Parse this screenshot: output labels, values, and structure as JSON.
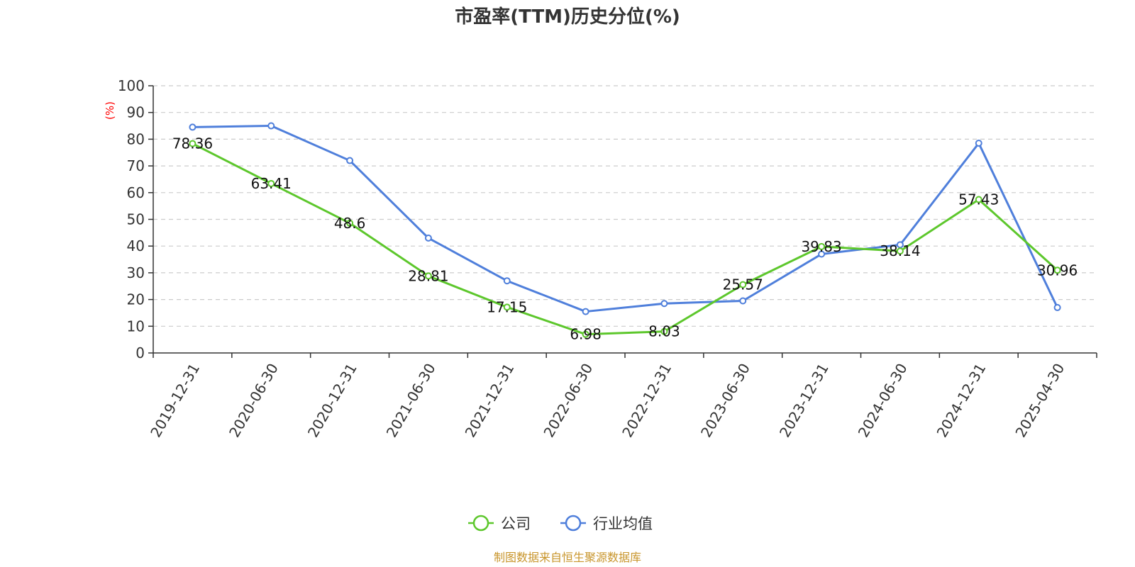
{
  "chart_data": {
    "type": "line",
    "title": "市盈率(TTM)历史分位(%)",
    "ylabel": "(%)",
    "xlabel": "",
    "ylim": [
      0,
      100
    ],
    "yticks": [
      0,
      10,
      20,
      30,
      40,
      50,
      60,
      70,
      80,
      90,
      100
    ],
    "categories": [
      "2019-12-31",
      "2020-06-30",
      "2020-12-31",
      "2021-06-30",
      "2021-12-31",
      "2022-06-30",
      "2022-12-31",
      "2023-06-30",
      "2023-12-31",
      "2024-06-30",
      "2024-12-31",
      "2025-04-30"
    ],
    "grid": true,
    "legend_position": "bottom-center",
    "series": [
      {
        "name": "公司",
        "color": "#5dc72c",
        "values": [
          78.36,
          63.41,
          48.6,
          28.81,
          17.15,
          6.98,
          8.03,
          25.57,
          39.83,
          38.14,
          57.43,
          30.96
        ],
        "labels": [
          "78.36",
          "63.41",
          "48.6",
          "28.81",
          "17.15",
          "6.98",
          "8.03",
          "25.57",
          "39.83",
          "38.14",
          "57.43",
          "30.96"
        ]
      },
      {
        "name": "行业均值",
        "color": "#4f7fdb",
        "values": [
          84.5,
          85.0,
          72.0,
          43.0,
          27.0,
          15.5,
          18.5,
          19.5,
          37.0,
          40.5,
          78.5,
          17.0
        ]
      }
    ]
  },
  "source": "制图数据来自恒生聚源数据库",
  "colors": {
    "ylabel": "#ff0000",
    "source": "#c8952b",
    "axis": "#333333",
    "grid": "#cccccc"
  }
}
